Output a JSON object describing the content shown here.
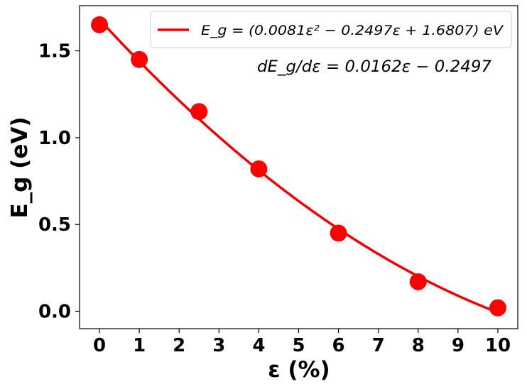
{
  "chart_data": {
    "type": "scatter",
    "xlabel": "ε (%)",
    "ylabel": "E_g (eV)",
    "xlim": [
      -0.5,
      10.5
    ],
    "ylim": [
      -0.1,
      1.76
    ],
    "xticks": [
      0,
      1,
      2,
      3,
      4,
      5,
      6,
      7,
      8,
      9,
      10
    ],
    "yticks": [
      0.0,
      0.5,
      1.0,
      1.5
    ],
    "ytick_labels": [
      "0.0",
      "0.5",
      "1.0",
      "1.5"
    ],
    "grid": false,
    "legend_position": "top-right",
    "series": [
      {
        "name": "E_g = (0.0081ε² − 0.2497ε + 1.6807) eV",
        "kind": "line",
        "color": "#ee0000",
        "coefficients": [
          0.0081,
          -0.2497,
          1.6807
        ]
      },
      {
        "kind": "scatter",
        "color": "#ff0000",
        "x": [
          0,
          1,
          2.5,
          4,
          6,
          8,
          10
        ],
        "y": [
          1.65,
          1.45,
          1.15,
          0.82,
          0.45,
          0.17,
          0.02
        ]
      }
    ],
    "annotations": [
      {
        "text": "dE_g/dε = 0.0162ε − 0.2497"
      }
    ]
  }
}
